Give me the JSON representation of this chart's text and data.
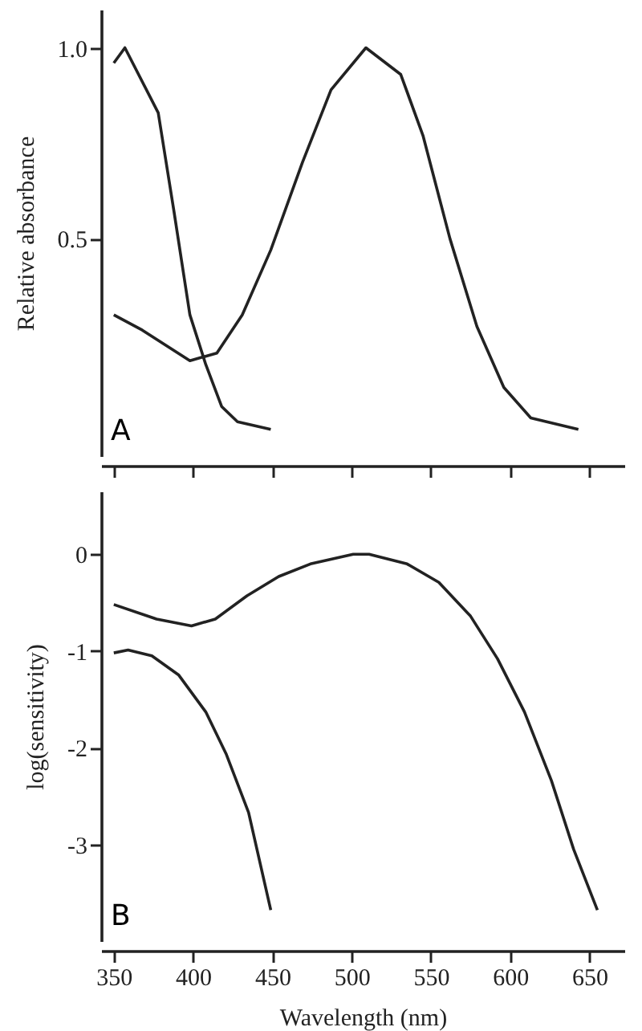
{
  "chart_data": [
    {
      "type": "line",
      "ylabel": "Relative absorbance",
      "annotations": [
        "A"
      ],
      "xlim": [
        342,
        672
      ],
      "xticks": [
        350,
        400,
        450,
        500,
        550,
        600,
        650
      ],
      "ylim": [
        -0.07,
        1.1
      ],
      "yticks": [
        {
          "value": 0.5,
          "label": "0.5"
        },
        {
          "value": 1,
          "label": "1.0"
        }
      ],
      "tick_labels": "y",
      "grid": false,
      "legend": false,
      "line_style": "solid",
      "series": [
        {
          "color": "#222222",
          "x": [
            350,
            357,
            378,
            388,
            398,
            408,
            418,
            428,
            449
          ],
          "values": [
            0.96,
            1.0,
            0.83,
            0.57,
            0.3,
            0.17,
            0.06,
            0.02,
            0.0
          ]
        },
        {
          "color": "#222222",
          "x": [
            350,
            368,
            398,
            415,
            431,
            449,
            469,
            487,
            509,
            531,
            545,
            562,
            579,
            596,
            613,
            643
          ],
          "values": [
            0.3,
            0.26,
            0.18,
            0.2,
            0.3,
            0.47,
            0.7,
            0.89,
            1.0,
            0.93,
            0.77,
            0.5,
            0.27,
            0.11,
            0.03,
            0.0
          ]
        }
      ]
    },
    {
      "type": "line",
      "xlabel": "Wavelength (nm)",
      "ylabel": "log(sensitivity)",
      "annotations": [
        "B"
      ],
      "xlim": [
        342,
        672
      ],
      "xticks": [
        350,
        400,
        450,
        500,
        550,
        600,
        650
      ],
      "ylim": [
        -4,
        0.65
      ],
      "yticks": [
        0,
        -1,
        -2,
        -3
      ],
      "grid": false,
      "legend": false,
      "line_style": "solid",
      "series": [
        {
          "color": "#222222",
          "x": [
            350,
            377,
            399,
            414,
            434,
            454,
            474,
            501,
            511,
            535,
            555,
            575,
            592,
            609,
            626,
            640,
            655
          ],
          "values": [
            -0.52,
            -0.67,
            -0.74,
            -0.67,
            -0.43,
            -0.23,
            -0.1,
            0,
            0,
            -0.1,
            -0.29,
            -0.64,
            -1.08,
            -1.63,
            -2.34,
            -3.05,
            -3.68
          ]
        },
        {
          "color": "#222222",
          "x": [
            350,
            359,
            374,
            391,
            408,
            421,
            435,
            449
          ],
          "values": [
            -1.02,
            -0.99,
            -1.05,
            -1.25,
            -1.63,
            -2.07,
            -2.67,
            -3.68
          ]
        }
      ]
    }
  ]
}
